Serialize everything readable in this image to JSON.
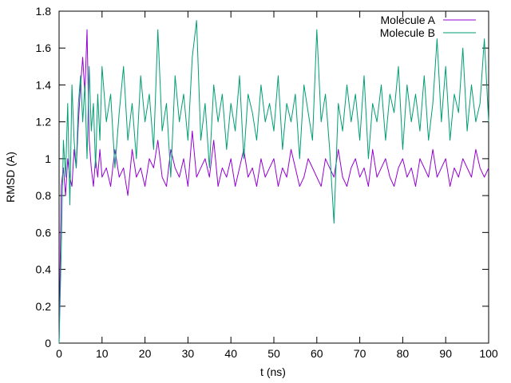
{
  "chart_data": {
    "type": "line",
    "title": "",
    "xlabel": "t (ns)",
    "ylabel": "RMSD (A)",
    "xlim": [
      0,
      100
    ],
    "ylim": [
      0,
      1.8
    ],
    "xticks": [
      0,
      10,
      20,
      30,
      40,
      50,
      60,
      70,
      80,
      90,
      100
    ],
    "yticks": [
      0,
      0.2,
      0.4,
      0.6,
      0.8,
      1,
      1.2,
      1.4,
      1.6,
      1.8
    ],
    "xtick_labels": [
      "0",
      "10",
      "20",
      "30",
      "40",
      "50",
      "60",
      "70",
      "80",
      "90",
      "100"
    ],
    "ytick_labels": [
      "0",
      "0.2",
      "0.4",
      "0.6",
      "0.8",
      "1",
      "1.2",
      "1.4",
      "1.6",
      "1.8"
    ],
    "grid": false,
    "legend_position": "top-right",
    "series": [
      {
        "name": "Molecule A",
        "color": "#9400d3",
        "x": [
          0,
          0.5,
          1,
          1.5,
          2,
          2.5,
          3,
          3.5,
          4,
          4.5,
          5,
          5.5,
          6,
          6.5,
          7,
          7.5,
          8,
          8.5,
          9,
          9.5,
          10,
          11,
          12,
          13,
          14,
          15,
          16,
          17,
          18,
          19,
          20,
          21,
          22,
          23,
          24,
          25,
          26,
          27,
          28,
          29,
          30,
          31,
          32,
          33,
          34,
          35,
          36,
          37,
          38,
          39,
          40,
          41,
          42,
          43,
          44,
          45,
          46,
          47,
          48,
          49,
          50,
          51,
          52,
          53,
          54,
          55,
          56,
          57,
          58,
          59,
          60,
          61,
          62,
          63,
          64,
          65,
          66,
          67,
          68,
          69,
          70,
          71,
          72,
          73,
          74,
          75,
          76,
          77,
          78,
          79,
          80,
          81,
          82,
          83,
          84,
          85,
          86,
          87,
          88,
          89,
          90,
          91,
          92,
          93,
          94,
          95,
          96,
          97,
          98,
          99,
          100
        ],
        "y": [
          0.0,
          0.85,
          0.95,
          0.8,
          1.0,
          0.9,
          0.85,
          1.05,
          0.95,
          1.2,
          1.4,
          1.55,
          1.35,
          1.7,
          1.1,
          0.95,
          0.85,
          1.0,
          0.9,
          1.05,
          0.9,
          0.95,
          0.85,
          1.05,
          0.9,
          0.95,
          0.8,
          1.05,
          0.9,
          0.95,
          0.85,
          1.0,
          0.95,
          1.1,
          0.9,
          0.85,
          1.05,
          0.95,
          0.9,
          1.0,
          0.85,
          1.15,
          0.9,
          0.95,
          1.0,
          0.9,
          1.1,
          0.85,
          0.95,
          0.9,
          1.0,
          0.85,
          0.95,
          1.05,
          0.9,
          0.95,
          0.85,
          1.0,
          0.9,
          0.95,
          1.0,
          0.85,
          0.95,
          0.9,
          1.05,
          0.95,
          0.85,
          0.9,
          1.0,
          0.95,
          0.9,
          0.85,
          1.0,
          0.95,
          0.9,
          1.05,
          0.9,
          0.85,
          0.95,
          1.0,
          0.9,
          0.95,
          0.85,
          1.05,
          0.9,
          0.95,
          1.0,
          0.9,
          0.85,
          0.95,
          1.0,
          0.9,
          0.95,
          0.85,
          1.0,
          0.95,
          0.9,
          1.05,
          0.9,
          0.95,
          1.0,
          0.85,
          0.95,
          0.9,
          1.0,
          0.95,
          0.9,
          1.05,
          0.95,
          0.9,
          0.95
        ]
      },
      {
        "name": "Molecule B",
        "color": "#009e73",
        "x": [
          0,
          0.5,
          1,
          1.5,
          2,
          2.5,
          3,
          3.5,
          4,
          4.5,
          5,
          5.5,
          6,
          6.5,
          7,
          7.5,
          8,
          8.5,
          9,
          9.5,
          10,
          11,
          12,
          13,
          14,
          15,
          16,
          17,
          18,
          19,
          20,
          21,
          22,
          23,
          24,
          25,
          26,
          27,
          28,
          29,
          30,
          31,
          32,
          33,
          34,
          35,
          36,
          37,
          38,
          39,
          40,
          41,
          42,
          43,
          44,
          45,
          46,
          47,
          48,
          49,
          50,
          51,
          52,
          53,
          54,
          55,
          56,
          57,
          58,
          59,
          60,
          61,
          62,
          63,
          64,
          65,
          66,
          67,
          68,
          69,
          70,
          71,
          72,
          73,
          74,
          75,
          76,
          77,
          78,
          79,
          80,
          81,
          82,
          83,
          84,
          85,
          86,
          87,
          88,
          89,
          90,
          91,
          92,
          93,
          94,
          95,
          96,
          97,
          98,
          99,
          100
        ],
        "y": [
          0.0,
          0.5,
          1.1,
          0.9,
          1.3,
          0.75,
          1.4,
          1.1,
          0.95,
          1.3,
          1.45,
          1.2,
          1.4,
          1.0,
          1.5,
          1.15,
          1.3,
          0.95,
          1.35,
          1.1,
          1.5,
          1.2,
          1.35,
          0.95,
          1.25,
          1.5,
          1.1,
          1.3,
          1.0,
          1.45,
          1.2,
          1.35,
          1.05,
          1.7,
          1.15,
          1.3,
          0.9,
          1.45,
          1.2,
          1.35,
          1.1,
          1.55,
          1.75,
          1.1,
          1.3,
          0.95,
          1.4,
          1.2,
          1.35,
          1.05,
          1.3,
          1.15,
          1.45,
          1.0,
          1.35,
          1.25,
          1.1,
          1.4,
          1.2,
          1.3,
          1.15,
          1.45,
          1.05,
          1.3,
          1.2,
          1.35,
          1.0,
          1.4,
          1.25,
          1.1,
          1.7,
          1.2,
          1.35,
          1.05,
          0.65,
          1.3,
          1.15,
          1.4,
          1.2,
          1.35,
          1.1,
          1.45,
          1.0,
          1.3,
          1.2,
          1.4,
          1.1,
          1.35,
          1.25,
          1.5,
          1.05,
          1.4,
          1.2,
          1.35,
          1.15,
          1.45,
          1.1,
          1.3,
          1.65,
          1.2,
          1.5,
          1.1,
          1.35,
          1.25,
          1.6,
          1.15,
          1.4,
          1.2,
          1.3,
          1.65,
          1.2
        ]
      }
    ]
  }
}
